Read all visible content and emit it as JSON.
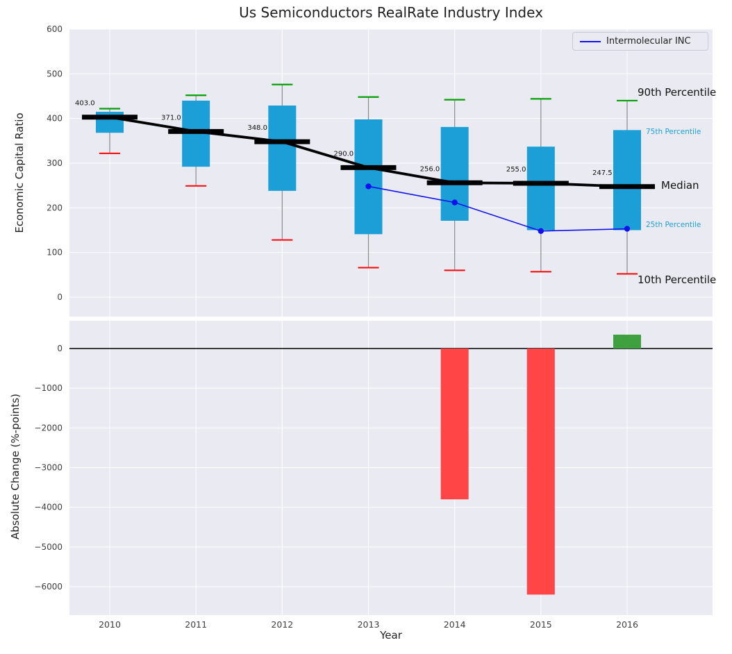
{
  "colors": {
    "panel_bg": "#EAEAF2",
    "grid": "#FFFFFF",
    "box": "#1C9FD6",
    "whisker": "#8A8A8A",
    "p90_cap": "#00A000",
    "p10_cap": "#FF0000",
    "median_line": "#000000",
    "company_line": "#1010EE",
    "bar_negative": "#FF4545",
    "bar_positive": "#3FA03F",
    "annotation_small": "#1C9FD6",
    "tick_text": "#3D3D3D"
  },
  "chart_data": {
    "type": "percentile-band-timeseries+bar",
    "title": "Us Semiconductors RealRate Industry Index",
    "xlabel": "Year",
    "categories": [
      2010,
      2011,
      2012,
      2013,
      2014,
      2015,
      2016
    ],
    "top": {
      "ylabel": "Economic Capital Ratio",
      "ylim": [
        0,
        600
      ],
      "yticks": [
        0,
        100,
        200,
        300,
        400,
        500,
        600
      ],
      "grid": true,
      "p90": [
        422,
        452,
        476,
        448,
        442,
        444,
        440
      ],
      "p75": [
        415,
        440,
        429,
        398,
        381,
        337,
        374
      ],
      "median": [
        403.0,
        371.0,
        348.0,
        290.0,
        256.0,
        255.0,
        247.5
      ],
      "median_labels": [
        "403.0",
        "371.0",
        "348.0",
        "290.0",
        "256.0",
        "255.0",
        "247.5"
      ],
      "p25": [
        368,
        292,
        238,
        141,
        171,
        150,
        150
      ],
      "p10": [
        322,
        249,
        128,
        66,
        60,
        57,
        52
      ],
      "company": {
        "name": "Intermolecular INC",
        "values": [
          null,
          null,
          null,
          248,
          212,
          148,
          153
        ]
      }
    },
    "bottom": {
      "ylabel": "Absolute Change (%-points)",
      "ylim": [
        -6700,
        700
      ],
      "yticks": [
        0,
        -1000,
        -2000,
        -3000,
        -4000,
        -5000,
        -6000
      ],
      "values": [
        null,
        null,
        null,
        null,
        -3800,
        -6200,
        350
      ]
    },
    "annotations": {
      "p90": "90th Percentile",
      "p75": "75th Percentile",
      "median": "Median",
      "p25": "25th Percentile",
      "p10": "10th Percentile"
    },
    "legend": {
      "label": "Intermolecular INC",
      "position": "upper right"
    }
  }
}
